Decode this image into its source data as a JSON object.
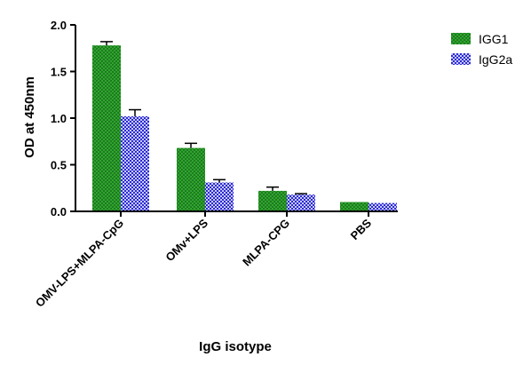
{
  "chart_data": {
    "type": "bar",
    "categories": [
      "OMV-LPS+MLPA-CpG",
      "OMv+LPS",
      "MLPA-CPG",
      "PBS"
    ],
    "series": [
      {
        "name": "IGG1",
        "values": [
          1.78,
          0.68,
          0.22,
          0.1
        ],
        "errors": [
          0.04,
          0.05,
          0.04,
          0.0
        ],
        "color": "#1f7a1f",
        "pattern_color": "#2fa52f"
      },
      {
        "name": "IgG2a",
        "values": [
          1.02,
          0.31,
          0.18,
          0.09
        ],
        "errors": [
          0.07,
          0.03,
          0.01,
          0.0
        ],
        "color": "#2b2bd0",
        "pattern_color": "#c8c8ff"
      }
    ],
    "xlabel": "IgG isotype",
    "ylabel": "OD at 450nm",
    "ylim": [
      0,
      2.0
    ],
    "yticks": [
      "0.0",
      "0.5",
      "1.0",
      "1.5",
      "2.0"
    ],
    "legend_position": "top-right",
    "grid": false
  }
}
